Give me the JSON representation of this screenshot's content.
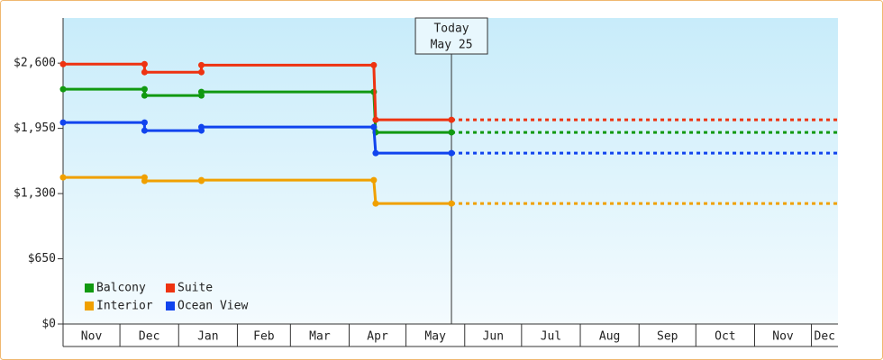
{
  "chart_data": {
    "type": "step-line",
    "annotation": {
      "title": "Today",
      "date": "May 25",
      "x": 205
    },
    "xlim": [
      0,
      409
    ],
    "xticks": [
      {
        "value": 0,
        "label": "Nov"
      },
      {
        "value": 30,
        "label": "Dec"
      },
      {
        "value": 61,
        "label": "Jan"
      },
      {
        "value": 92,
        "label": "Feb"
      },
      {
        "value": 120,
        "label": "Mar"
      },
      {
        "value": 151,
        "label": "Apr"
      },
      {
        "value": 181,
        "label": "May"
      },
      {
        "value": 212,
        "label": "Jun"
      },
      {
        "value": 242,
        "label": "Jul"
      },
      {
        "value": 273,
        "label": "Aug"
      },
      {
        "value": 304,
        "label": "Sep"
      },
      {
        "value": 334,
        "label": "Oct"
      },
      {
        "value": 365,
        "label": "Nov"
      },
      {
        "value": 395,
        "label": "Dec"
      }
    ],
    "ylim": [
      0,
      3050
    ],
    "yticks": [
      {
        "value": 0,
        "label": "$0"
      },
      {
        "value": 650,
        "label": "$650"
      },
      {
        "value": 1300,
        "label": "$1,300"
      },
      {
        "value": 1950,
        "label": "$1,950"
      },
      {
        "value": 2600,
        "label": "$2,600"
      }
    ],
    "legend": "lower left",
    "x": [
      0,
      43,
      43,
      73,
      73,
      164,
      165,
      205
    ],
    "series": [
      {
        "name": "Balcony",
        "color": "#119911",
        "values": [
          2340,
          2340,
          2277,
          2277,
          2313,
          2313,
          1910,
          1910
        ]
      },
      {
        "name": "Suite",
        "color": "#ee3311",
        "values": [
          2590,
          2590,
          2510,
          2510,
          2580,
          2580,
          2035,
          2035
        ]
      },
      {
        "name": "Interior",
        "color": "#f0a000",
        "values": [
          1461,
          1461,
          1426,
          1426,
          1434,
          1434,
          1201,
          1201
        ]
      },
      {
        "name": "Ocean View",
        "color": "#1144ee",
        "values": [
          2008,
          2008,
          1928,
          1928,
          1963,
          1963,
          1703,
          1703
        ]
      }
    ]
  }
}
